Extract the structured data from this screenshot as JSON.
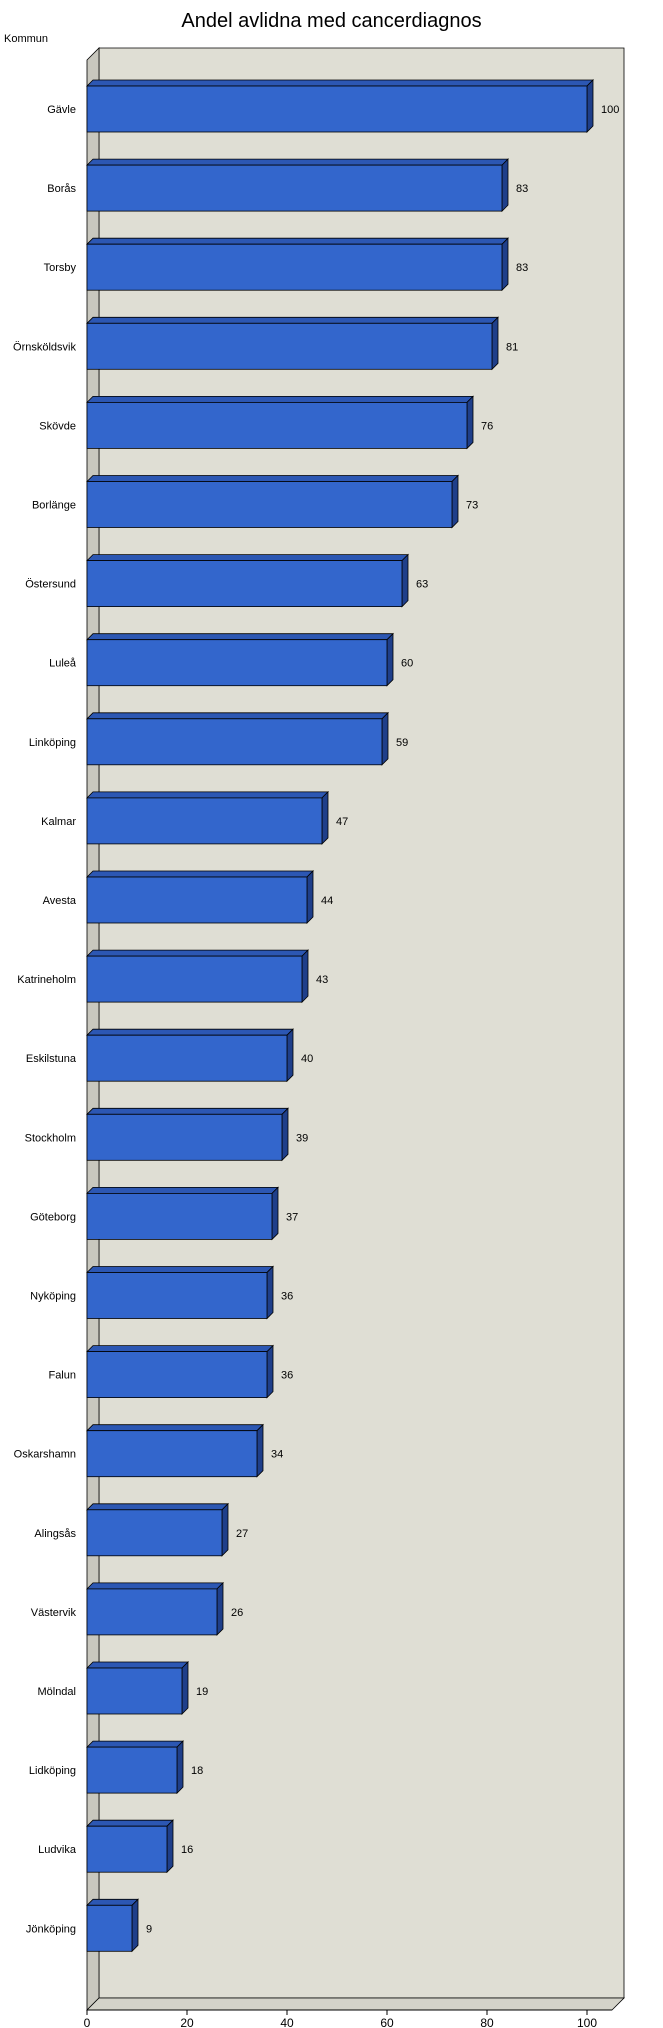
{
  "chart_data": {
    "type": "bar",
    "orientation": "horizontal",
    "title": "Andel avlidna med cancerdiagnos",
    "ylabel": "Kommun",
    "xlabel": "",
    "xlim": [
      0,
      105
    ],
    "xticks": [
      0,
      20,
      40,
      60,
      80,
      100
    ],
    "categories": [
      "Gävle",
      "Borås",
      "Torsby",
      "Örnsköldsvik",
      "Skövde",
      "Borlänge",
      "Östersund",
      "Luleå",
      "Linköping",
      "Kalmar",
      "Avesta",
      "Katrineholm",
      "Eskilstuna",
      "Stockholm",
      "Göteborg",
      "Nyköping",
      "Falun",
      "Oskarshamn",
      "Alingsås",
      "Västervik",
      "Mölndal",
      "Lidköping",
      "Ludvika",
      "Jönköping"
    ],
    "values": [
      100,
      83,
      83,
      81,
      76,
      73,
      63,
      60,
      59,
      47,
      44,
      43,
      40,
      39,
      37,
      36,
      36,
      34,
      27,
      26,
      19,
      18,
      16,
      9
    ],
    "value_labels": [
      "100",
      "83",
      "83",
      "81",
      "76",
      "73",
      "63",
      "60",
      "59",
      "47",
      "44",
      "43",
      "40",
      "39",
      "37",
      "36",
      "36",
      "34",
      "27",
      "26",
      "19",
      "18",
      "16",
      "9"
    ],
    "tick_labels": [
      "0",
      "20",
      "40",
      "60",
      "80",
      "100"
    ],
    "colors": {
      "bar_front": "#3366cc",
      "bar_top": "#2c57b3",
      "bar_side": "#1f3f8a",
      "plot_background": "#dfded4",
      "left_wall": "#c8c7be",
      "floor": "#d4d3c9",
      "outline": "#000000"
    },
    "grid": false,
    "legend": "none",
    "style": "3d"
  }
}
